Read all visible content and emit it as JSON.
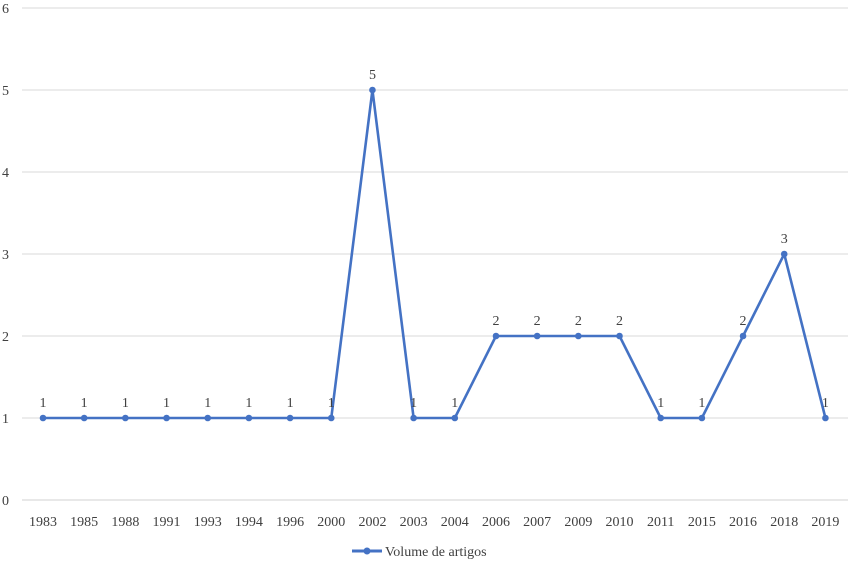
{
  "chart_data": {
    "type": "line",
    "title": "",
    "xlabel": "",
    "ylabel": "",
    "categories": [
      "1983",
      "1985",
      "1988",
      "1991",
      "1993",
      "1994",
      "1996",
      "2000",
      "2002",
      "2003",
      "2004",
      "2006",
      "2007",
      "2009",
      "2010",
      "2011",
      "2015",
      "2016",
      "2018",
      "2019"
    ],
    "series": [
      {
        "name": "Volume de artigos",
        "values": [
          1,
          1,
          1,
          1,
          1,
          1,
          1,
          1,
          5,
          1,
          1,
          2,
          2,
          2,
          2,
          1,
          1,
          2,
          3,
          1
        ],
        "color": "#4472C4"
      }
    ],
    "ylim": [
      0,
      6
    ],
    "yticks": [
      "0",
      "1",
      "2",
      "3",
      "4",
      "5",
      "6"
    ],
    "grid": "horizontal",
    "data_labels": true,
    "legend_position": "bottom"
  }
}
